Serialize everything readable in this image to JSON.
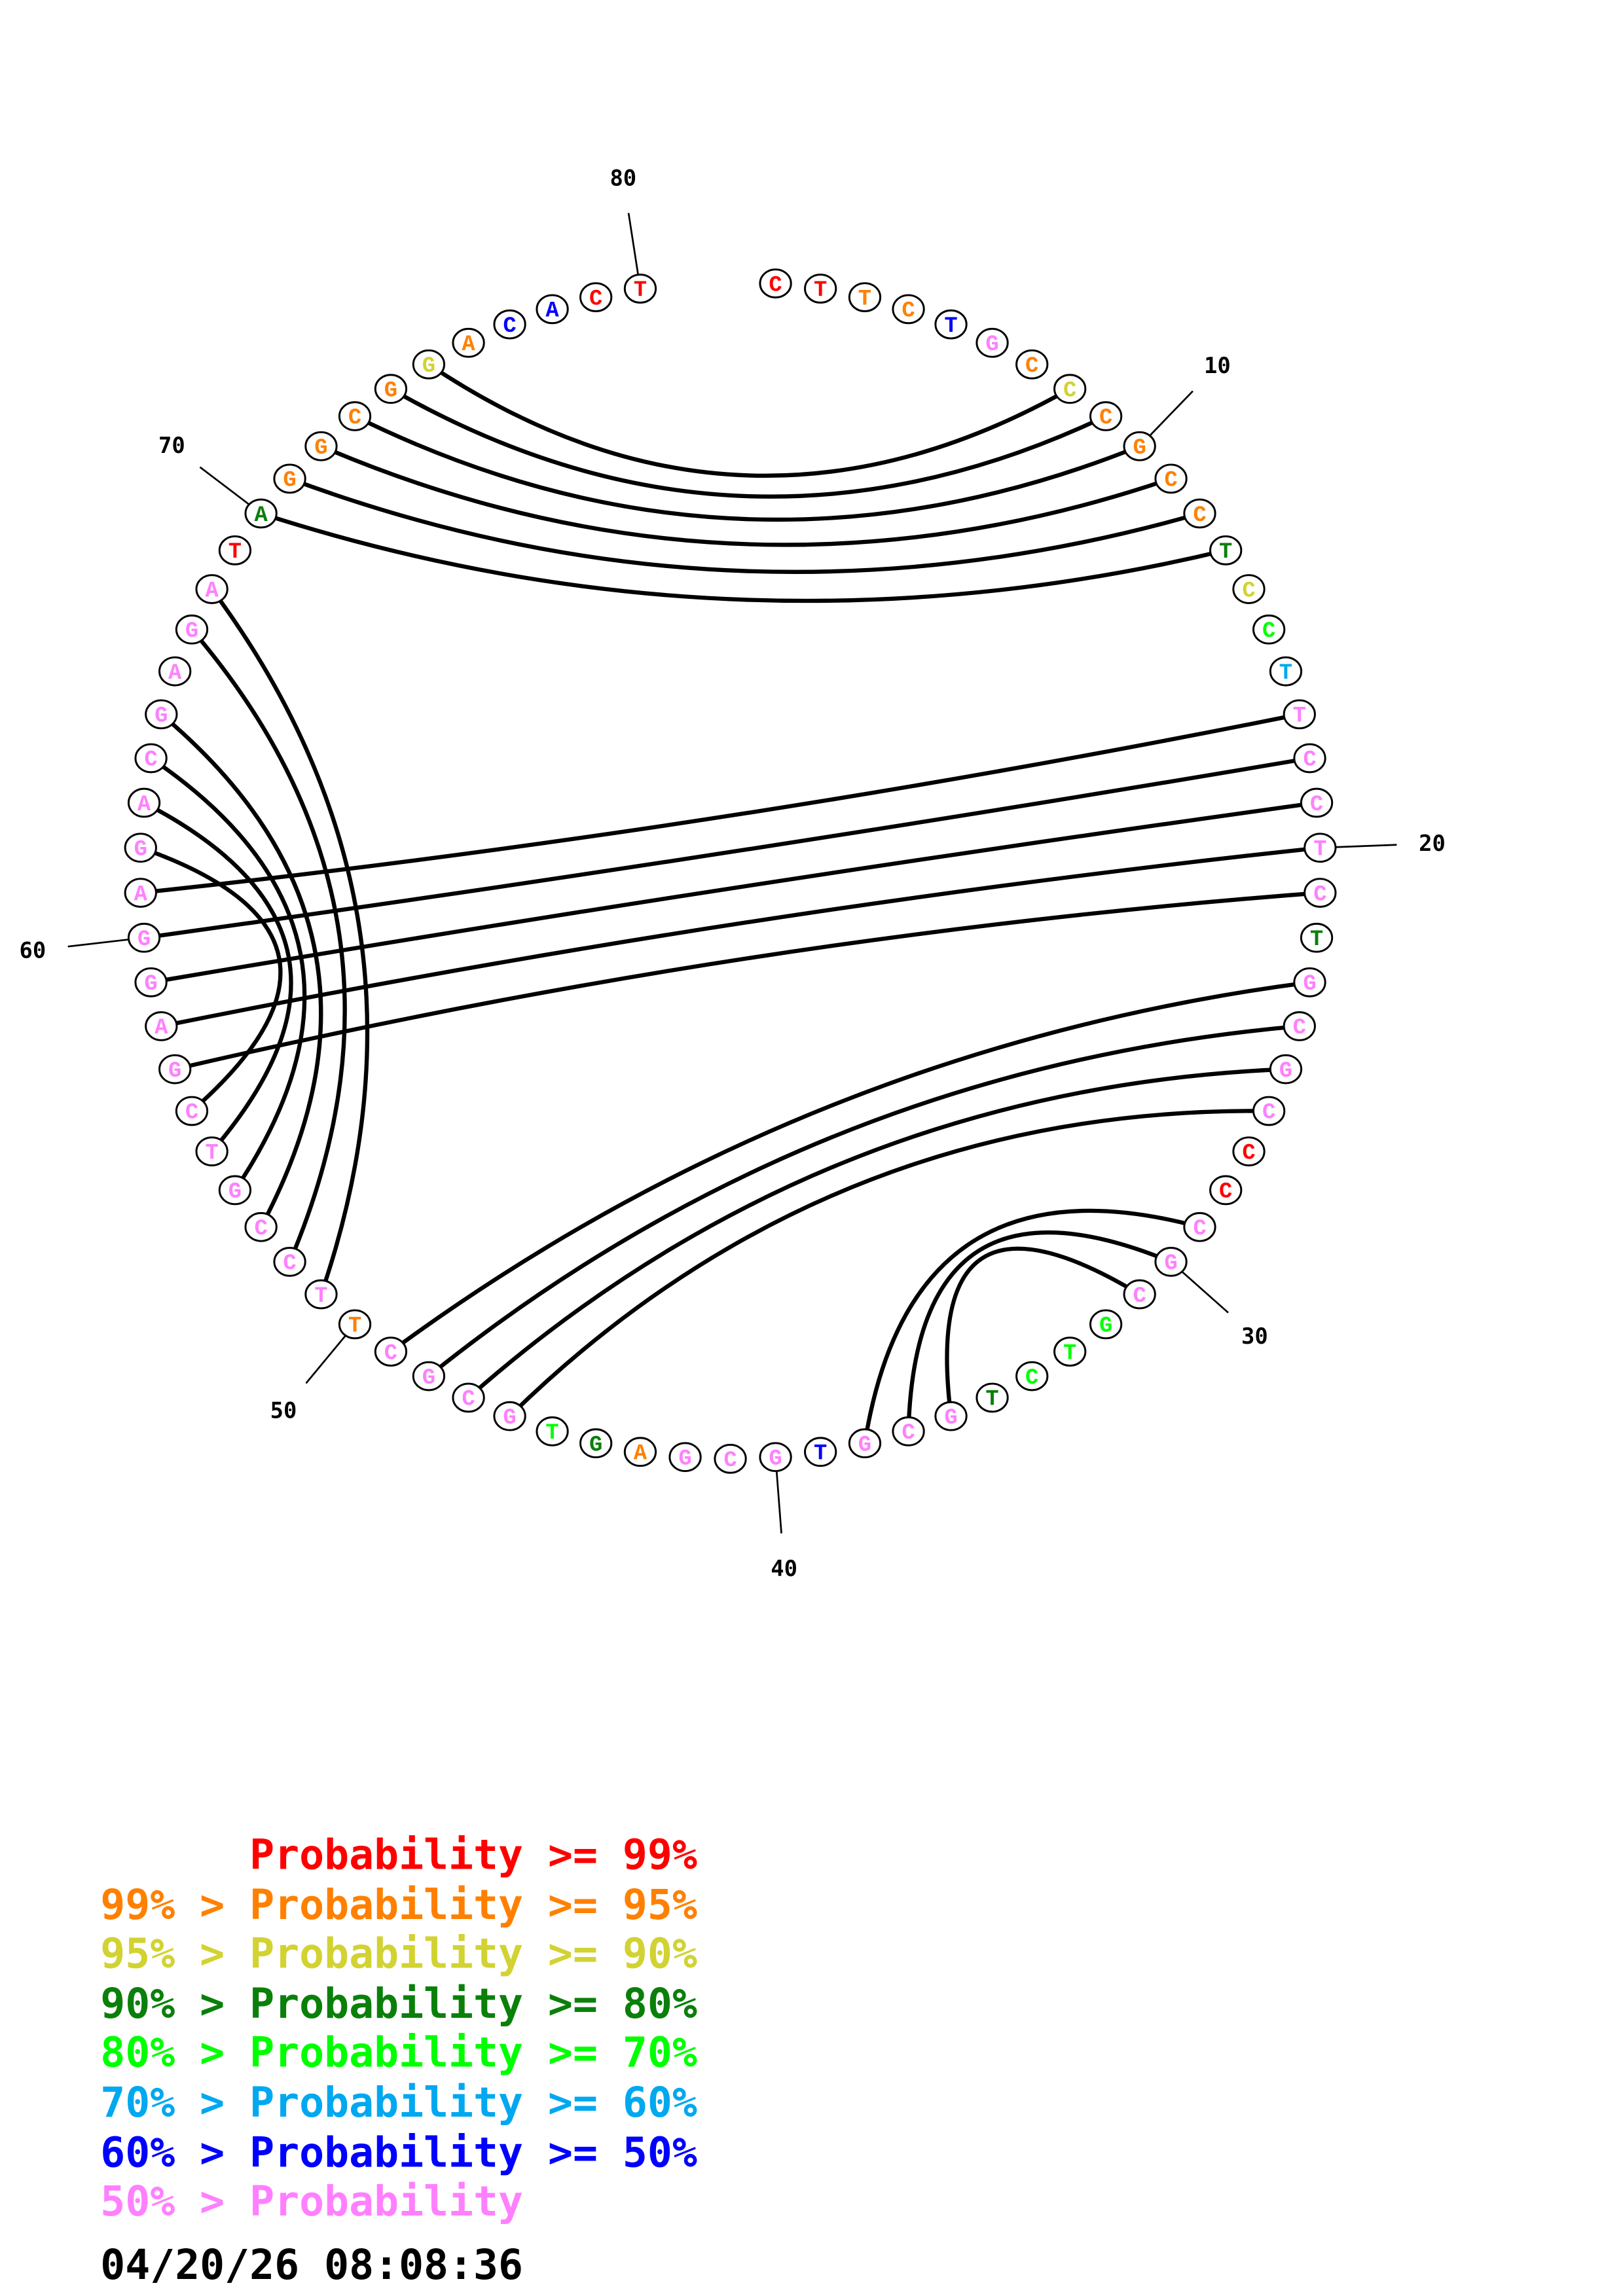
{
  "colors": {
    "p99": "#ff0000",
    "p95": "#ff8000",
    "p90": "#d2d232",
    "p80": "#0a800a",
    "p70": "#00ff00",
    "p60": "#00a8f0",
    "p50": "#0000ff",
    "plow": "#ff80ff",
    "black": "#000000"
  },
  "sequence": [
    {
      "n": 1,
      "base": "C",
      "prob": "p99"
    },
    {
      "n": 2,
      "base": "T",
      "prob": "p99"
    },
    {
      "n": 3,
      "base": "T",
      "prob": "p95"
    },
    {
      "n": 4,
      "base": "C",
      "prob": "p95"
    },
    {
      "n": 5,
      "base": "T",
      "prob": "p50"
    },
    {
      "n": 6,
      "base": "G",
      "prob": "plow"
    },
    {
      "n": 7,
      "base": "C",
      "prob": "p95"
    },
    {
      "n": 8,
      "base": "C",
      "prob": "p90"
    },
    {
      "n": 9,
      "base": "C",
      "prob": "p95"
    },
    {
      "n": 10,
      "base": "G",
      "prob": "p95"
    },
    {
      "n": 11,
      "base": "C",
      "prob": "p95"
    },
    {
      "n": 12,
      "base": "C",
      "prob": "p95"
    },
    {
      "n": 13,
      "base": "T",
      "prob": "p80"
    },
    {
      "n": 14,
      "base": "C",
      "prob": "p90"
    },
    {
      "n": 15,
      "base": "C",
      "prob": "p70"
    },
    {
      "n": 16,
      "base": "T",
      "prob": "p60"
    },
    {
      "n": 17,
      "base": "T",
      "prob": "plow"
    },
    {
      "n": 18,
      "base": "C",
      "prob": "plow"
    },
    {
      "n": 19,
      "base": "C",
      "prob": "plow"
    },
    {
      "n": 20,
      "base": "T",
      "prob": "plow"
    },
    {
      "n": 21,
      "base": "C",
      "prob": "plow"
    },
    {
      "n": 22,
      "base": "T",
      "prob": "p80"
    },
    {
      "n": 23,
      "base": "G",
      "prob": "plow"
    },
    {
      "n": 24,
      "base": "C",
      "prob": "plow"
    },
    {
      "n": 25,
      "base": "G",
      "prob": "plow"
    },
    {
      "n": 26,
      "base": "C",
      "prob": "plow"
    },
    {
      "n": 27,
      "base": "C",
      "prob": "p99"
    },
    {
      "n": 28,
      "base": "C",
      "prob": "p99"
    },
    {
      "n": 29,
      "base": "C",
      "prob": "plow"
    },
    {
      "n": 30,
      "base": "G",
      "prob": "plow"
    },
    {
      "n": 31,
      "base": "C",
      "prob": "plow"
    },
    {
      "n": 32,
      "base": "G",
      "prob": "p70"
    },
    {
      "n": 33,
      "base": "T",
      "prob": "p70"
    },
    {
      "n": 34,
      "base": "C",
      "prob": "p70"
    },
    {
      "n": 35,
      "base": "T",
      "prob": "p80"
    },
    {
      "n": 36,
      "base": "G",
      "prob": "plow"
    },
    {
      "n": 37,
      "base": "C",
      "prob": "plow"
    },
    {
      "n": 38,
      "base": "G",
      "prob": "plow"
    },
    {
      "n": 39,
      "base": "T",
      "prob": "p50"
    },
    {
      "n": 40,
      "base": "G",
      "prob": "plow"
    },
    {
      "n": 41,
      "base": "C",
      "prob": "plow"
    },
    {
      "n": 42,
      "base": "G",
      "prob": "plow"
    },
    {
      "n": 43,
      "base": "A",
      "prob": "p95"
    },
    {
      "n": 44,
      "base": "G",
      "prob": "p80"
    },
    {
      "n": 45,
      "base": "T",
      "prob": "p70"
    },
    {
      "n": 46,
      "base": "G",
      "prob": "plow"
    },
    {
      "n": 47,
      "base": "C",
      "prob": "plow"
    },
    {
      "n": 48,
      "base": "G",
      "prob": "plow"
    },
    {
      "n": 49,
      "base": "C",
      "prob": "plow"
    },
    {
      "n": 50,
      "base": "T",
      "prob": "p95"
    },
    {
      "n": 51,
      "base": "T",
      "prob": "plow"
    },
    {
      "n": 52,
      "base": "C",
      "prob": "plow"
    },
    {
      "n": 53,
      "base": "C",
      "prob": "plow"
    },
    {
      "n": 54,
      "base": "G",
      "prob": "plow"
    },
    {
      "n": 55,
      "base": "T",
      "prob": "plow"
    },
    {
      "n": 56,
      "base": "C",
      "prob": "plow"
    },
    {
      "n": 57,
      "base": "G",
      "prob": "plow"
    },
    {
      "n": 58,
      "base": "A",
      "prob": "plow"
    },
    {
      "n": 59,
      "base": "G",
      "prob": "plow"
    },
    {
      "n": 60,
      "base": "G",
      "prob": "plow"
    },
    {
      "n": 61,
      "base": "A",
      "prob": "plow"
    },
    {
      "n": 62,
      "base": "G",
      "prob": "plow"
    },
    {
      "n": 63,
      "base": "A",
      "prob": "plow"
    },
    {
      "n": 64,
      "base": "C",
      "prob": "plow"
    },
    {
      "n": 65,
      "base": "G",
      "prob": "plow"
    },
    {
      "n": 66,
      "base": "A",
      "prob": "plow"
    },
    {
      "n": 67,
      "base": "G",
      "prob": "plow"
    },
    {
      "n": 68,
      "base": "A",
      "prob": "plow"
    },
    {
      "n": 69,
      "base": "T",
      "prob": "p99"
    },
    {
      "n": 70,
      "base": "A",
      "prob": "p80"
    },
    {
      "n": 71,
      "base": "G",
      "prob": "p95"
    },
    {
      "n": 72,
      "base": "G",
      "prob": "p95"
    },
    {
      "n": 73,
      "base": "C",
      "prob": "p95"
    },
    {
      "n": 74,
      "base": "G",
      "prob": "p95"
    },
    {
      "n": 75,
      "base": "G",
      "prob": "p90"
    },
    {
      "n": 76,
      "base": "A",
      "prob": "p95"
    },
    {
      "n": 77,
      "base": "C",
      "prob": "p50"
    },
    {
      "n": 78,
      "base": "A",
      "prob": "p50"
    },
    {
      "n": 79,
      "base": "C",
      "prob": "p99"
    },
    {
      "n": 80,
      "base": "T",
      "prob": "p99"
    }
  ],
  "pairs": [
    [
      8,
      75
    ],
    [
      9,
      74
    ],
    [
      10,
      73
    ],
    [
      11,
      72
    ],
    [
      12,
      71
    ],
    [
      13,
      70
    ],
    [
      17,
      61
    ],
    [
      18,
      60
    ],
    [
      19,
      59
    ],
    [
      20,
      58
    ],
    [
      21,
      57
    ],
    [
      23,
      49
    ],
    [
      24,
      48
    ],
    [
      25,
      47
    ],
    [
      26,
      46
    ],
    [
      29,
      38
    ],
    [
      30,
      37
    ],
    [
      31,
      36
    ],
    [
      51,
      68
    ],
    [
      52,
      67
    ],
    [
      53,
      65
    ],
    [
      54,
      64
    ],
    [
      55,
      63
    ],
    [
      56,
      62
    ]
  ],
  "ticks": [
    {
      "n": 10,
      "label": "10"
    },
    {
      "n": 20,
      "label": "20"
    },
    {
      "n": 30,
      "label": "30"
    },
    {
      "n": 40,
      "label": "40"
    },
    {
      "n": 50,
      "label": "50"
    },
    {
      "n": 60,
      "label": "60"
    },
    {
      "n": 70,
      "label": "70"
    },
    {
      "n": 80,
      "label": "80"
    }
  ],
  "legend": [
    {
      "text": "      Probability >= 99%",
      "prob": "p99"
    },
    {
      "text": "99% > Probability >= 95%",
      "prob": "p95"
    },
    {
      "text": "95% > Probability >= 90%",
      "prob": "p90"
    },
    {
      "text": "90% > Probability >= 80%",
      "prob": "p80"
    },
    {
      "text": "80% > Probability >= 70%",
      "prob": "p70"
    },
    {
      "text": "70% > Probability >= 60%",
      "prob": "p60"
    },
    {
      "text": "60% > Probability >= 50%",
      "prob": "p50"
    },
    {
      "text": "50% > Probability",
      "prob": "plow"
    }
  ],
  "timestamp": "04/20/26 08:08:36"
}
